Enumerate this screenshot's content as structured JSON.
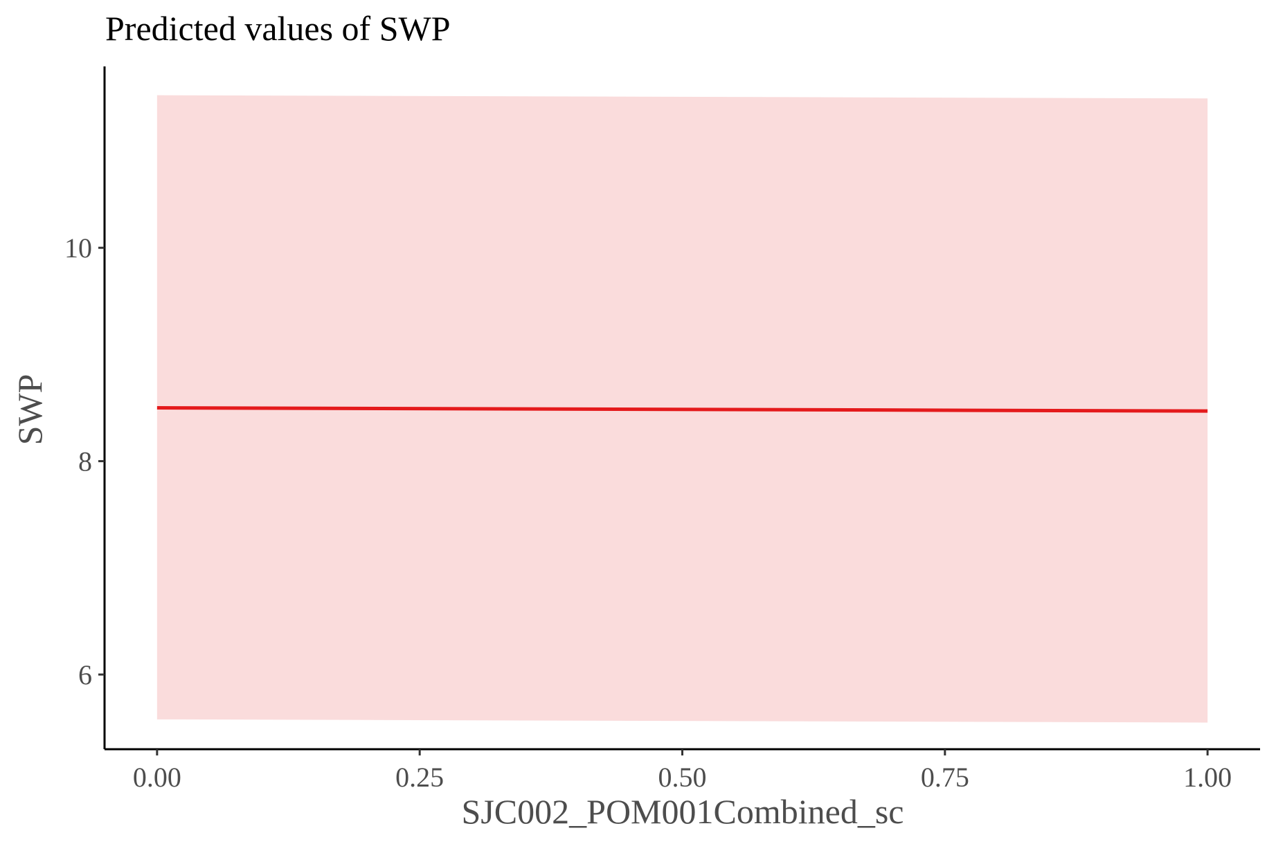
{
  "chart_data": {
    "type": "line",
    "title": "Predicted values of SWP",
    "xlabel": "SJC002_POM001Combined_sc",
    "ylabel": "SWP",
    "xlim": [
      -0.05,
      1.05
    ],
    "ylim": [
      5.3,
      11.7
    ],
    "x_ticks": [
      0.0,
      0.25,
      0.5,
      0.75,
      1.0
    ],
    "x_tick_labels": [
      "0.00",
      "0.25",
      "0.50",
      "0.75",
      "1.00"
    ],
    "y_ticks": [
      6,
      8,
      10
    ],
    "y_tick_labels": [
      "6",
      "8",
      "10"
    ],
    "grid": false,
    "legend": "none",
    "series": [
      {
        "x": [
          0.0,
          1.0
        ],
        "y": [
          8.5,
          8.47
        ],
        "ci_low": [
          5.58,
          5.55
        ],
        "ci_high": [
          11.43,
          11.4
        ],
        "color": "#e41a1c",
        "ribbon_color": "#fadcdc"
      }
    ]
  }
}
